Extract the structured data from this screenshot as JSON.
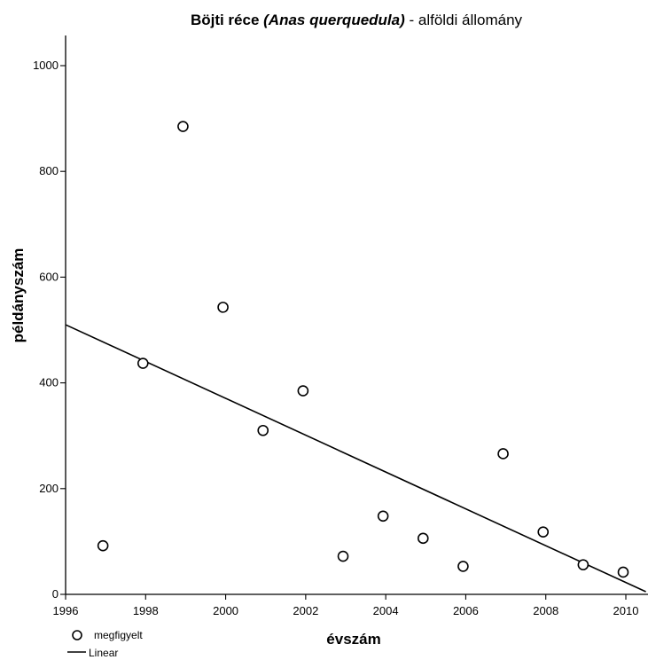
{
  "chart_data": {
    "type": "scatter",
    "title": {
      "part1": "Böjti réce ",
      "part2": "(Anas querquedula)",
      "part3": " - alföldi állomány"
    },
    "xlabel": "évszám",
    "ylabel": "példányszám",
    "xlim": [
      1996,
      2010.5
    ],
    "ylim": [
      0,
      1050
    ],
    "x_ticks": [
      1996,
      1998,
      2000,
      2002,
      2004,
      2006,
      2008,
      2010
    ],
    "y_ticks": [
      0,
      200,
      400,
      600,
      800,
      1000
    ],
    "series": [
      {
        "name": "megfigyelt",
        "x": [
          1997,
          1998,
          1999,
          2000,
          2001,
          2002,
          2003,
          2004,
          2005,
          2006,
          2007,
          2008,
          2009,
          2010
        ],
        "y": [
          92,
          437,
          885,
          543,
          310,
          385,
          72,
          148,
          106,
          53,
          266,
          118,
          56,
          42
        ]
      }
    ],
    "fit": {
      "name": "Linear",
      "x": [
        1996,
        2010.5
      ],
      "y": [
        510,
        5
      ]
    },
    "legend": [
      "megfigyelt",
      "Linear"
    ],
    "legend_position": "bottom-left",
    "grid": false
  }
}
